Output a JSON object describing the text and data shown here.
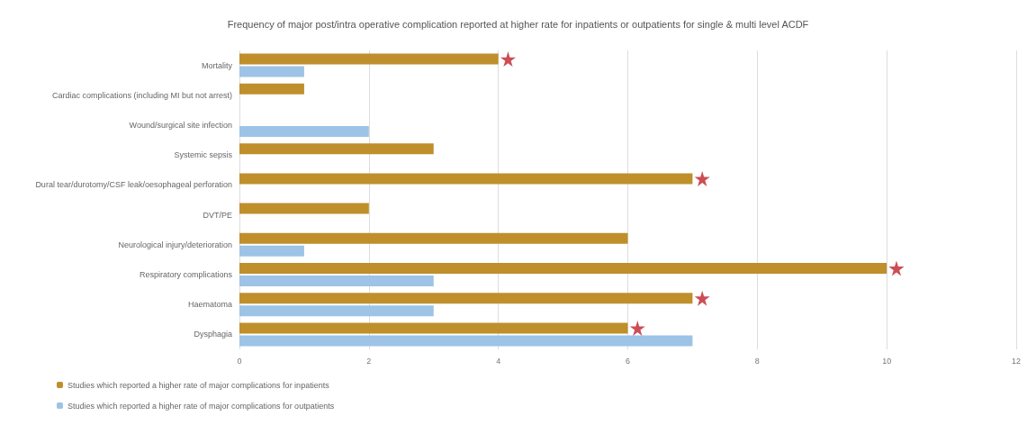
{
  "chart_data": {
    "type": "bar",
    "orientation": "horizontal",
    "title": "Frequency of major post/intra operative complication reported at higher rate for inpatients or outpatients for single & multi level ACDF",
    "categories": [
      "Mortality",
      "Cardiac complications (including MI but not arrest)",
      "Wound/surgical site infection",
      "Systemic sepsis",
      "Dural tear/durotomy/CSF leak/oesophageal perforation",
      "DVT/PE",
      "Neurological injury/deterioration",
      "Respiratory complications",
      "Haematoma",
      "Dysphagia"
    ],
    "series": [
      {
        "name": "Studies which reported a higher rate of major complications for inpatients",
        "color": "#bf8f2c",
        "values": [
          4,
          1,
          null,
          3,
          7,
          2,
          6,
          10,
          7,
          6
        ]
      },
      {
        "name": "Studies which reported a higher rate of major complications for outpatients",
        "color": "#9dc3e6",
        "values": [
          1,
          null,
          2,
          null,
          null,
          null,
          1,
          3,
          3,
          7
        ]
      },
      {
        "type": "scatter",
        "marker": "star",
        "color": "#c0202a",
        "values": [
          4.15,
          null,
          null,
          null,
          7.15,
          null,
          null,
          10.15,
          7.15,
          6.15
        ]
      }
    ],
    "xlim": [
      0,
      12
    ],
    "xticks": [
      0,
      2,
      4,
      6,
      8,
      10,
      12
    ],
    "grid": "x",
    "legend": "bottom left"
  }
}
